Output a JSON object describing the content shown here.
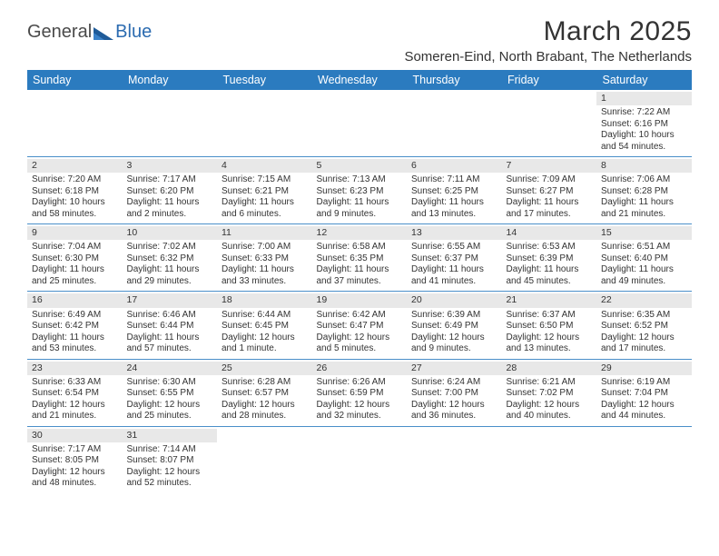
{
  "logo": {
    "part1": "General",
    "part2": "Blue"
  },
  "title": "March 2025",
  "location": "Someren-Eind, North Brabant, The Netherlands",
  "colors": {
    "header_bg": "#2b7bbf",
    "header_text": "#ffffff",
    "daynum_bg": "#e8e8e8",
    "rule": "#4a8fc9",
    "body_text": "#333333",
    "background": "#ffffff"
  },
  "typography": {
    "title_fontsize_pt": 22,
    "location_fontsize_pt": 11,
    "dayheader_fontsize_pt": 9,
    "cell_fontsize_pt": 7.5
  },
  "day_headers": [
    "Sunday",
    "Monday",
    "Tuesday",
    "Wednesday",
    "Thursday",
    "Friday",
    "Saturday"
  ],
  "weeks": [
    [
      null,
      null,
      null,
      null,
      null,
      null,
      {
        "n": "1",
        "sr": "Sunrise: 7:22 AM",
        "ss": "Sunset: 6:16 PM",
        "dl": "Daylight: 10 hours and 54 minutes."
      }
    ],
    [
      {
        "n": "2",
        "sr": "Sunrise: 7:20 AM",
        "ss": "Sunset: 6:18 PM",
        "dl": "Daylight: 10 hours and 58 minutes."
      },
      {
        "n": "3",
        "sr": "Sunrise: 7:17 AM",
        "ss": "Sunset: 6:20 PM",
        "dl": "Daylight: 11 hours and 2 minutes."
      },
      {
        "n": "4",
        "sr": "Sunrise: 7:15 AM",
        "ss": "Sunset: 6:21 PM",
        "dl": "Daylight: 11 hours and 6 minutes."
      },
      {
        "n": "5",
        "sr": "Sunrise: 7:13 AM",
        "ss": "Sunset: 6:23 PM",
        "dl": "Daylight: 11 hours and 9 minutes."
      },
      {
        "n": "6",
        "sr": "Sunrise: 7:11 AM",
        "ss": "Sunset: 6:25 PM",
        "dl": "Daylight: 11 hours and 13 minutes."
      },
      {
        "n": "7",
        "sr": "Sunrise: 7:09 AM",
        "ss": "Sunset: 6:27 PM",
        "dl": "Daylight: 11 hours and 17 minutes."
      },
      {
        "n": "8",
        "sr": "Sunrise: 7:06 AM",
        "ss": "Sunset: 6:28 PM",
        "dl": "Daylight: 11 hours and 21 minutes."
      }
    ],
    [
      {
        "n": "9",
        "sr": "Sunrise: 7:04 AM",
        "ss": "Sunset: 6:30 PM",
        "dl": "Daylight: 11 hours and 25 minutes."
      },
      {
        "n": "10",
        "sr": "Sunrise: 7:02 AM",
        "ss": "Sunset: 6:32 PM",
        "dl": "Daylight: 11 hours and 29 minutes."
      },
      {
        "n": "11",
        "sr": "Sunrise: 7:00 AM",
        "ss": "Sunset: 6:33 PM",
        "dl": "Daylight: 11 hours and 33 minutes."
      },
      {
        "n": "12",
        "sr": "Sunrise: 6:58 AM",
        "ss": "Sunset: 6:35 PM",
        "dl": "Daylight: 11 hours and 37 minutes."
      },
      {
        "n": "13",
        "sr": "Sunrise: 6:55 AM",
        "ss": "Sunset: 6:37 PM",
        "dl": "Daylight: 11 hours and 41 minutes."
      },
      {
        "n": "14",
        "sr": "Sunrise: 6:53 AM",
        "ss": "Sunset: 6:39 PM",
        "dl": "Daylight: 11 hours and 45 minutes."
      },
      {
        "n": "15",
        "sr": "Sunrise: 6:51 AM",
        "ss": "Sunset: 6:40 PM",
        "dl": "Daylight: 11 hours and 49 minutes."
      }
    ],
    [
      {
        "n": "16",
        "sr": "Sunrise: 6:49 AM",
        "ss": "Sunset: 6:42 PM",
        "dl": "Daylight: 11 hours and 53 minutes."
      },
      {
        "n": "17",
        "sr": "Sunrise: 6:46 AM",
        "ss": "Sunset: 6:44 PM",
        "dl": "Daylight: 11 hours and 57 minutes."
      },
      {
        "n": "18",
        "sr": "Sunrise: 6:44 AM",
        "ss": "Sunset: 6:45 PM",
        "dl": "Daylight: 12 hours and 1 minute."
      },
      {
        "n": "19",
        "sr": "Sunrise: 6:42 AM",
        "ss": "Sunset: 6:47 PM",
        "dl": "Daylight: 12 hours and 5 minutes."
      },
      {
        "n": "20",
        "sr": "Sunrise: 6:39 AM",
        "ss": "Sunset: 6:49 PM",
        "dl": "Daylight: 12 hours and 9 minutes."
      },
      {
        "n": "21",
        "sr": "Sunrise: 6:37 AM",
        "ss": "Sunset: 6:50 PM",
        "dl": "Daylight: 12 hours and 13 minutes."
      },
      {
        "n": "22",
        "sr": "Sunrise: 6:35 AM",
        "ss": "Sunset: 6:52 PM",
        "dl": "Daylight: 12 hours and 17 minutes."
      }
    ],
    [
      {
        "n": "23",
        "sr": "Sunrise: 6:33 AM",
        "ss": "Sunset: 6:54 PM",
        "dl": "Daylight: 12 hours and 21 minutes."
      },
      {
        "n": "24",
        "sr": "Sunrise: 6:30 AM",
        "ss": "Sunset: 6:55 PM",
        "dl": "Daylight: 12 hours and 25 minutes."
      },
      {
        "n": "25",
        "sr": "Sunrise: 6:28 AM",
        "ss": "Sunset: 6:57 PM",
        "dl": "Daylight: 12 hours and 28 minutes."
      },
      {
        "n": "26",
        "sr": "Sunrise: 6:26 AM",
        "ss": "Sunset: 6:59 PM",
        "dl": "Daylight: 12 hours and 32 minutes."
      },
      {
        "n": "27",
        "sr": "Sunrise: 6:24 AM",
        "ss": "Sunset: 7:00 PM",
        "dl": "Daylight: 12 hours and 36 minutes."
      },
      {
        "n": "28",
        "sr": "Sunrise: 6:21 AM",
        "ss": "Sunset: 7:02 PM",
        "dl": "Daylight: 12 hours and 40 minutes."
      },
      {
        "n": "29",
        "sr": "Sunrise: 6:19 AM",
        "ss": "Sunset: 7:04 PM",
        "dl": "Daylight: 12 hours and 44 minutes."
      }
    ],
    [
      {
        "n": "30",
        "sr": "Sunrise: 7:17 AM",
        "ss": "Sunset: 8:05 PM",
        "dl": "Daylight: 12 hours and 48 minutes."
      },
      {
        "n": "31",
        "sr": "Sunrise: 7:14 AM",
        "ss": "Sunset: 8:07 PM",
        "dl": "Daylight: 12 hours and 52 minutes."
      },
      null,
      null,
      null,
      null,
      null
    ]
  ]
}
